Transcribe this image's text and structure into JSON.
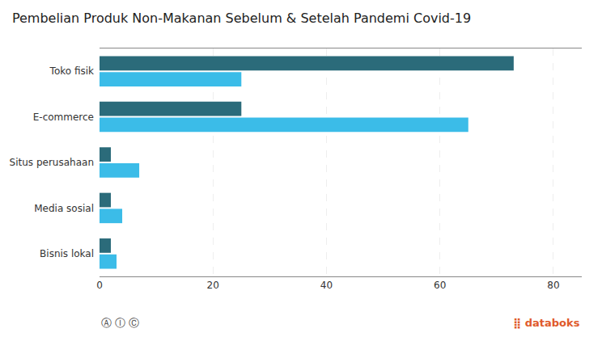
{
  "chart_data": {
    "type": "bar",
    "orientation": "horizontal",
    "title": "Pembelian Produk Non-Makanan Sebelum & Setelah Pandemi Covid-19",
    "categories": [
      "Toko fisik",
      "E-commerce",
      "Situs perusahaan",
      "Media sosial",
      "Bisnis lokal"
    ],
    "series": [
      {
        "color": "#2b6b7a",
        "values": [
          73,
          25,
          2,
          2,
          2
        ]
      },
      {
        "color": "#3bbce8",
        "values": [
          25,
          65,
          7,
          4,
          3
        ]
      }
    ],
    "xlim": [
      0,
      85
    ],
    "xticks": [
      0,
      20,
      40,
      60,
      80
    ],
    "grid": true,
    "annotations": [
      "Ⓐ Ⓘ Ⓒ",
      "⣿ databoks"
    ]
  }
}
